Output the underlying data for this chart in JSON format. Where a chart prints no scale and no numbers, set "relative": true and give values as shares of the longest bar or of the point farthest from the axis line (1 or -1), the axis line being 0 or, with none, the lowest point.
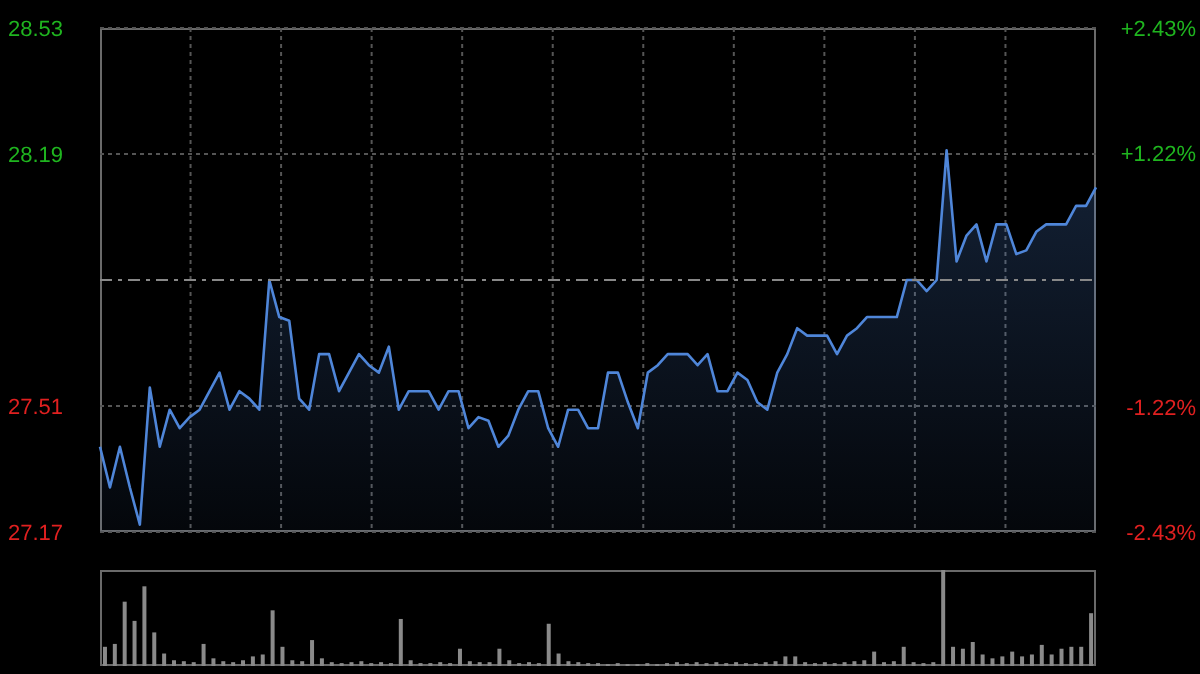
{
  "chart_data": [
    {
      "type": "area",
      "categories": [
        null,
        null,
        null,
        null,
        null,
        null,
        null,
        null,
        null,
        null,
        null,
        null,
        null,
        null,
        null,
        null,
        null,
        null,
        null,
        null,
        null,
        null,
        null,
        null,
        null,
        null,
        null,
        null,
        null,
        null,
        null,
        null,
        null,
        null,
        null,
        null,
        null,
        null,
        null,
        null,
        null,
        null,
        null,
        null,
        null,
        null,
        null,
        null,
        null,
        null,
        null,
        null,
        null,
        null,
        null,
        null,
        null,
        null,
        null,
        null,
        null,
        null,
        null,
        null,
        null,
        null,
        null,
        null,
        null,
        null,
        null,
        null,
        null,
        null,
        null,
        null,
        null,
        null,
        null,
        null,
        null,
        null,
        null,
        null,
        null,
        null,
        null,
        null,
        null,
        null,
        null,
        null,
        null,
        null,
        null,
        null,
        null,
        null,
        null,
        null,
        null
      ],
      "series": [
        {
          "color": "#4f86d9",
          "values": [
            27.4,
            27.29,
            27.4,
            27.29,
            27.19,
            27.56,
            27.4,
            27.5,
            27.45,
            27.48,
            27.5,
            27.55,
            27.6,
            27.5,
            27.55,
            27.53,
            27.5,
            27.85,
            27.75,
            27.74,
            27.53,
            27.5,
            27.65,
            27.65,
            27.55,
            27.6,
            27.65,
            27.62,
            27.6,
            27.67,
            27.5,
            27.55,
            27.55,
            27.55,
            27.5,
            27.55,
            27.55,
            27.45,
            27.48,
            27.47,
            27.4,
            27.43,
            27.5,
            27.55,
            27.55,
            27.45,
            27.4,
            27.5,
            27.5,
            27.45,
            27.45,
            27.6,
            27.6,
            27.52,
            27.45,
            27.6,
            27.62,
            27.65,
            27.65,
            27.65,
            27.62,
            27.65,
            27.55,
            27.55,
            27.6,
            27.58,
            27.52,
            27.5,
            27.6,
            27.65,
            27.72,
            27.7,
            27.7,
            27.7,
            27.65,
            27.7,
            27.72,
            27.75,
            27.75,
            27.75,
            27.75,
            27.85,
            27.85,
            27.82,
            27.85,
            28.2,
            27.9,
            27.97,
            28.0,
            27.9,
            28.0,
            28.0,
            27.92,
            27.93,
            27.98,
            28.0,
            28.0,
            28.0,
            28.05,
            28.05,
            28.1
          ]
        }
      ],
      "ylim": [
        27.17,
        28.53
      ],
      "yticks": [
        27.17,
        27.51,
        28.19,
        28.53
      ],
      "y2lim": [
        -2.43,
        2.43
      ],
      "y2ticks": [
        {
          "value": -2.43,
          "label": "-2.43%"
        },
        {
          "value": -1.22,
          "label": "-1.22%"
        },
        {
          "value": 1.22,
          "label": "+1.22%"
        },
        {
          "value": 2.43,
          "label": "+2.43%"
        }
      ],
      "ref_lines": [
        {
          "axis": "y",
          "value": 27.85,
          "color": "#888888",
          "line_style": "dashed"
        }
      ],
      "grid": true,
      "legend": false,
      "marker": "none"
    },
    {
      "type": "bar",
      "relative": true,
      "categories": [
        null,
        null,
        null,
        null,
        null,
        null,
        null,
        null,
        null,
        null,
        null,
        null,
        null,
        null,
        null,
        null,
        null,
        null,
        null,
        null,
        null,
        null,
        null,
        null,
        null,
        null,
        null,
        null,
        null,
        null,
        null,
        null,
        null,
        null,
        null,
        null,
        null,
        null,
        null,
        null,
        null,
        null,
        null,
        null,
        null,
        null,
        null,
        null,
        null,
        null,
        null,
        null,
        null,
        null,
        null,
        null,
        null,
        null,
        null,
        null,
        null,
        null,
        null,
        null,
        null,
        null,
        null,
        null,
        null,
        null,
        null,
        null,
        null,
        null,
        null,
        null,
        null,
        null,
        null,
        null,
        null,
        null,
        null,
        null,
        null,
        null,
        null,
        null,
        null,
        null,
        null,
        null,
        null,
        null,
        null,
        null,
        null,
        null,
        null,
        null,
        null
      ],
      "series": [
        {
          "color": "#8a8a8a",
          "values": [
            0.2,
            0.23,
            0.67,
            0.47,
            0.83,
            0.35,
            0.13,
            0.06,
            0.05,
            0.04,
            0.23,
            0.08,
            0.05,
            0.04,
            0.06,
            0.1,
            0.12,
            0.58,
            0.2,
            0.06,
            0.05,
            0.27,
            0.08,
            0.04,
            0.03,
            0.04,
            0.05,
            0.03,
            0.04,
            0.03,
            0.49,
            0.06,
            0.03,
            0.03,
            0.04,
            0.03,
            0.18,
            0.05,
            0.04,
            0.04,
            0.18,
            0.06,
            0.03,
            0.04,
            0.03,
            0.44,
            0.13,
            0.05,
            0.04,
            0.03,
            0.03,
            0.02,
            0.03,
            0.02,
            0.02,
            0.03,
            0.02,
            0.03,
            0.04,
            0.03,
            0.04,
            0.03,
            0.04,
            0.03,
            0.04,
            0.03,
            0.03,
            0.04,
            0.05,
            0.1,
            0.1,
            0.04,
            0.03,
            0.04,
            0.03,
            0.04,
            0.05,
            0.06,
            0.15,
            0.04,
            0.05,
            0.2,
            0.04,
            0.03,
            0.04,
            1.0,
            0.2,
            0.18,
            0.25,
            0.12,
            0.08,
            0.1,
            0.15,
            0.1,
            0.12,
            0.22,
            0.12,
            0.18,
            0.2,
            0.2,
            0.55
          ]
        }
      ],
      "legend": false
    }
  ]
}
